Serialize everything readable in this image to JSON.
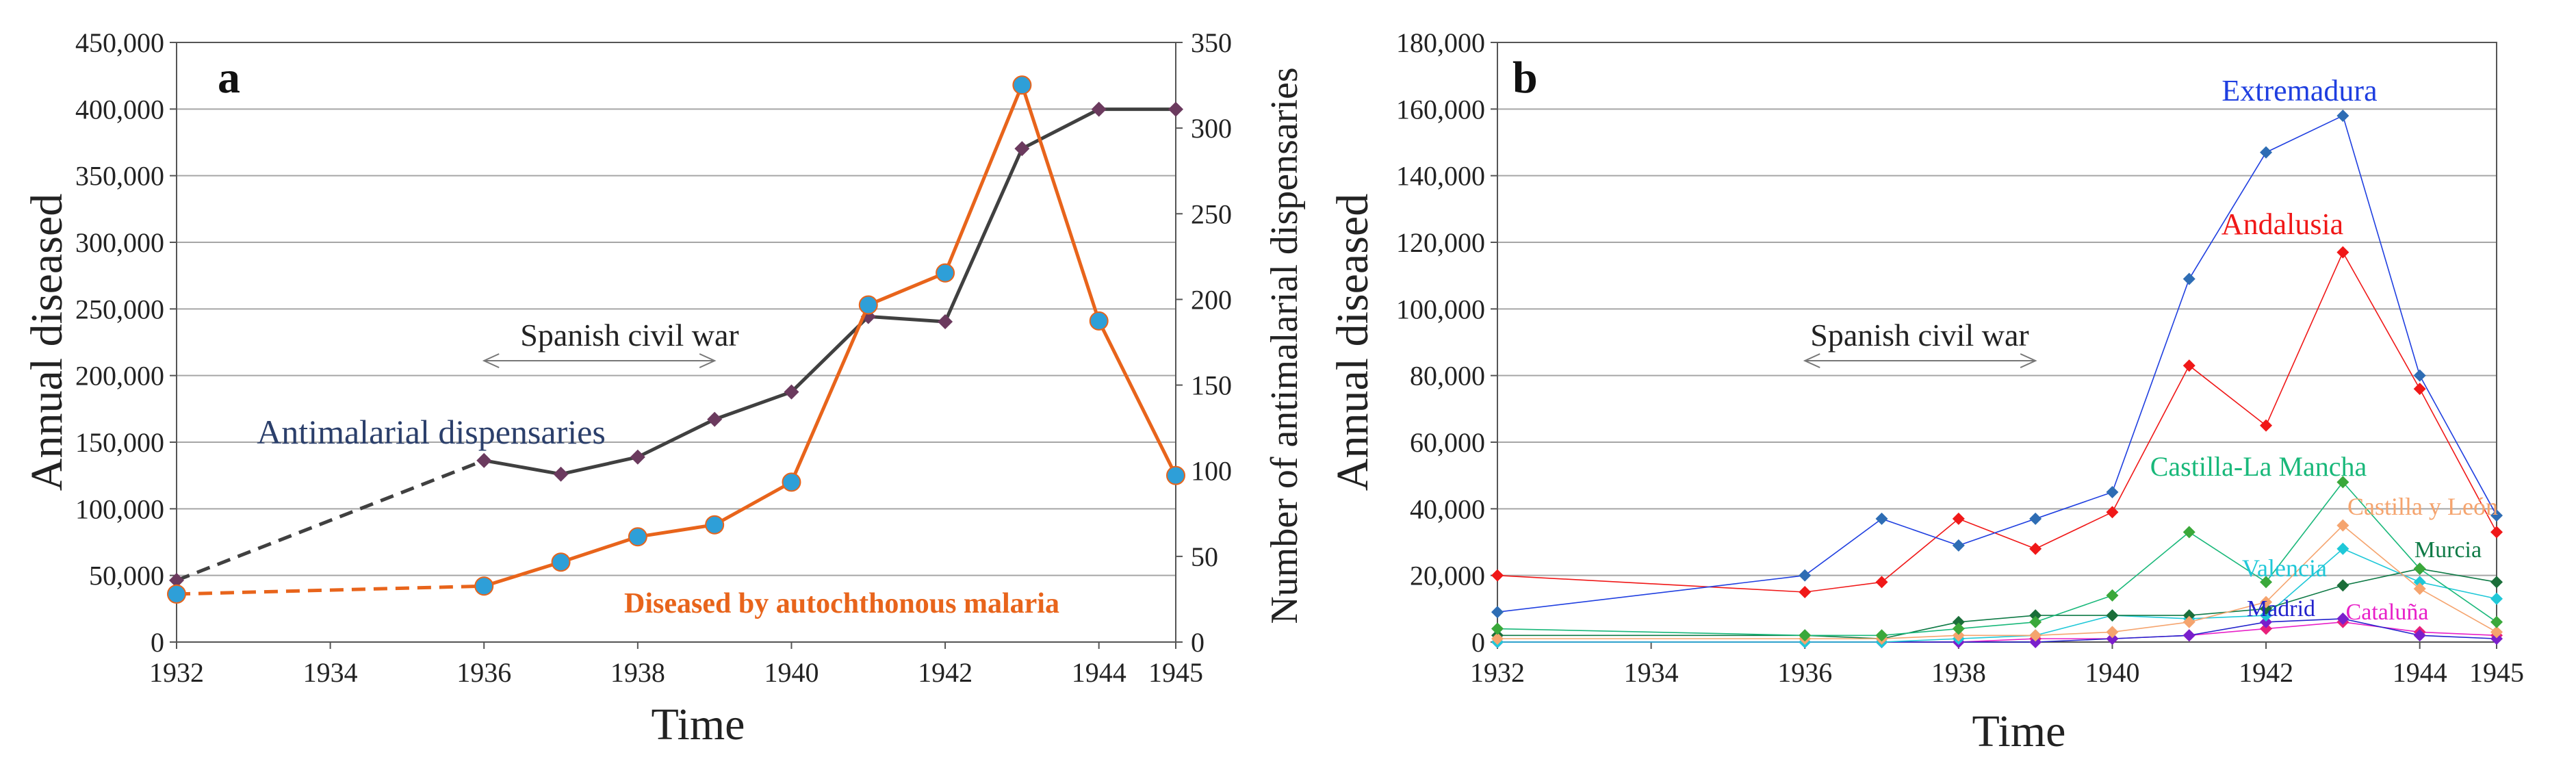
{
  "panel_a": {
    "label": "a",
    "title": "",
    "xlabel": "Time",
    "ylabel": "Annual diseased",
    "ylabel_right": "Number of antimalarial dispensaries",
    "x_ticks": [
      "1932",
      "1934",
      "1936",
      "1938",
      "1940",
      "1942",
      "1944",
      "1945"
    ],
    "y_ticks": [
      "0",
      "50,000",
      "100,000",
      "150,000",
      "200,000",
      "250,000",
      "300,000",
      "350,000",
      "400,000",
      "450,000"
    ],
    "y2_ticks": [
      "0",
      "50",
      "100",
      "150",
      "200",
      "250",
      "300",
      "350"
    ],
    "annotation_war": "Spanish civil war",
    "label_dispensaries": "Antimalarial dispensaries",
    "label_diseased": "Diseased by autochthonous malaria"
  },
  "panel_b": {
    "label": "b",
    "xlabel": "Time",
    "ylabel": "Annual diseased",
    "x_ticks": [
      "1932",
      "1934",
      "1936",
      "1938",
      "1940",
      "1942",
      "1944",
      "1945"
    ],
    "y_ticks": [
      "0",
      "20,000",
      "40,000",
      "60,000",
      "80,000",
      "100,000",
      "120,000",
      "140,000",
      "160,000",
      "180,000"
    ],
    "annotation_war": "Spanish civil war"
  },
  "chart_data": [
    {
      "type": "line",
      "panel": "a",
      "xlim": [
        1932,
        1945
      ],
      "ylim": [
        0,
        450000
      ],
      "y2lim": [
        0,
        350
      ],
      "series": [
        {
          "name": "Diseased by autochthonous malaria",
          "axis": "left",
          "color": "#E8641B",
          "marker_color": "#2E9FD8",
          "x": [
            1932,
            1936,
            1937,
            1938,
            1939,
            1940,
            1941,
            1942,
            1943,
            1944,
            1945
          ],
          "values": [
            36000,
            42000,
            60000,
            79000,
            88000,
            120000,
            253000,
            277000,
            418000,
            241000,
            125000
          ],
          "dashed_segments": [
            [
              1932,
              1936
            ]
          ]
        },
        {
          "name": "Antimalarial dispensaries",
          "axis": "right",
          "color": "#404040",
          "marker_color": "#6B3A5E",
          "x": [
            1932,
            1936,
            1937,
            1938,
            1939,
            1940,
            1941,
            1942,
            1943,
            1944,
            1945
          ],
          "values": [
            36,
            106,
            98,
            108,
            130,
            146,
            190,
            187,
            288,
            311,
            311
          ],
          "dashed_segments": [
            [
              1932,
              1936
            ]
          ]
        }
      ],
      "annotation": {
        "text": "Spanish civil war",
        "from": 1936,
        "to": 1939
      }
    },
    {
      "type": "line",
      "panel": "b",
      "xlim": [
        1932,
        1945
      ],
      "ylim": [
        0,
        180000
      ],
      "x": [
        1932,
        1936,
        1937,
        1938,
        1939,
        1940,
        1941,
        1942,
        1943,
        1944,
        1945
      ],
      "series": [
        {
          "name": "Extremadura",
          "color": "#1F3FE0",
          "marker_color": "#2E6DB4",
          "values": [
            9000,
            20000,
            37000,
            29000,
            37000,
            45000,
            109000,
            147000,
            158000,
            80000,
            38000
          ]
        },
        {
          "name": "Andalusia",
          "color": "#F01818",
          "marker_color": "#F01818",
          "values": [
            20000,
            15000,
            18000,
            37000,
            28000,
            39000,
            83000,
            65000,
            117000,
            76000,
            33000
          ]
        },
        {
          "name": "Castilla-La Mancha",
          "color": "#19B87A",
          "marker_color": "#3AA83A",
          "values": [
            4000,
            2000,
            2000,
            4000,
            6000,
            14000,
            33000,
            18000,
            48000,
            22000,
            6000
          ]
        },
        {
          "name": "Castilla y León",
          "color": "#F5A46E",
          "marker_color": "#F5A46E",
          "values": [
            1000,
            1000,
            1000,
            2000,
            2000,
            3000,
            6000,
            12000,
            35000,
            16000,
            3000
          ]
        },
        {
          "name": "Murcia",
          "color": "#0F7A46",
          "marker_color": "#1B6E3A",
          "values": [
            2000,
            2000,
            1000,
            6000,
            8000,
            8000,
            8000,
            10000,
            17000,
            22000,
            18000
          ]
        },
        {
          "name": "Valencia",
          "color": "#1FC8D8",
          "marker_color": "#1FC8D8",
          "values": [
            0,
            0,
            0,
            1000,
            2000,
            8000,
            7000,
            8000,
            28000,
            18000,
            13000
          ]
        },
        {
          "name": "Madrid",
          "color": "#2222CC",
          "marker_color": "#7A1FCC",
          "values": [
            0,
            0,
            0,
            0,
            0,
            1000,
            2000,
            6000,
            7000,
            2000,
            1000
          ]
        },
        {
          "name": "Cataluña",
          "color": "#E820C8",
          "marker_color": "#E8207A",
          "values": [
            0,
            0,
            0,
            0,
            1000,
            1000,
            2000,
            4000,
            6000,
            3000,
            2000
          ]
        }
      ],
      "annotation": {
        "text": "Spanish civil war",
        "from": 1936,
        "to": 1939
      }
    }
  ]
}
